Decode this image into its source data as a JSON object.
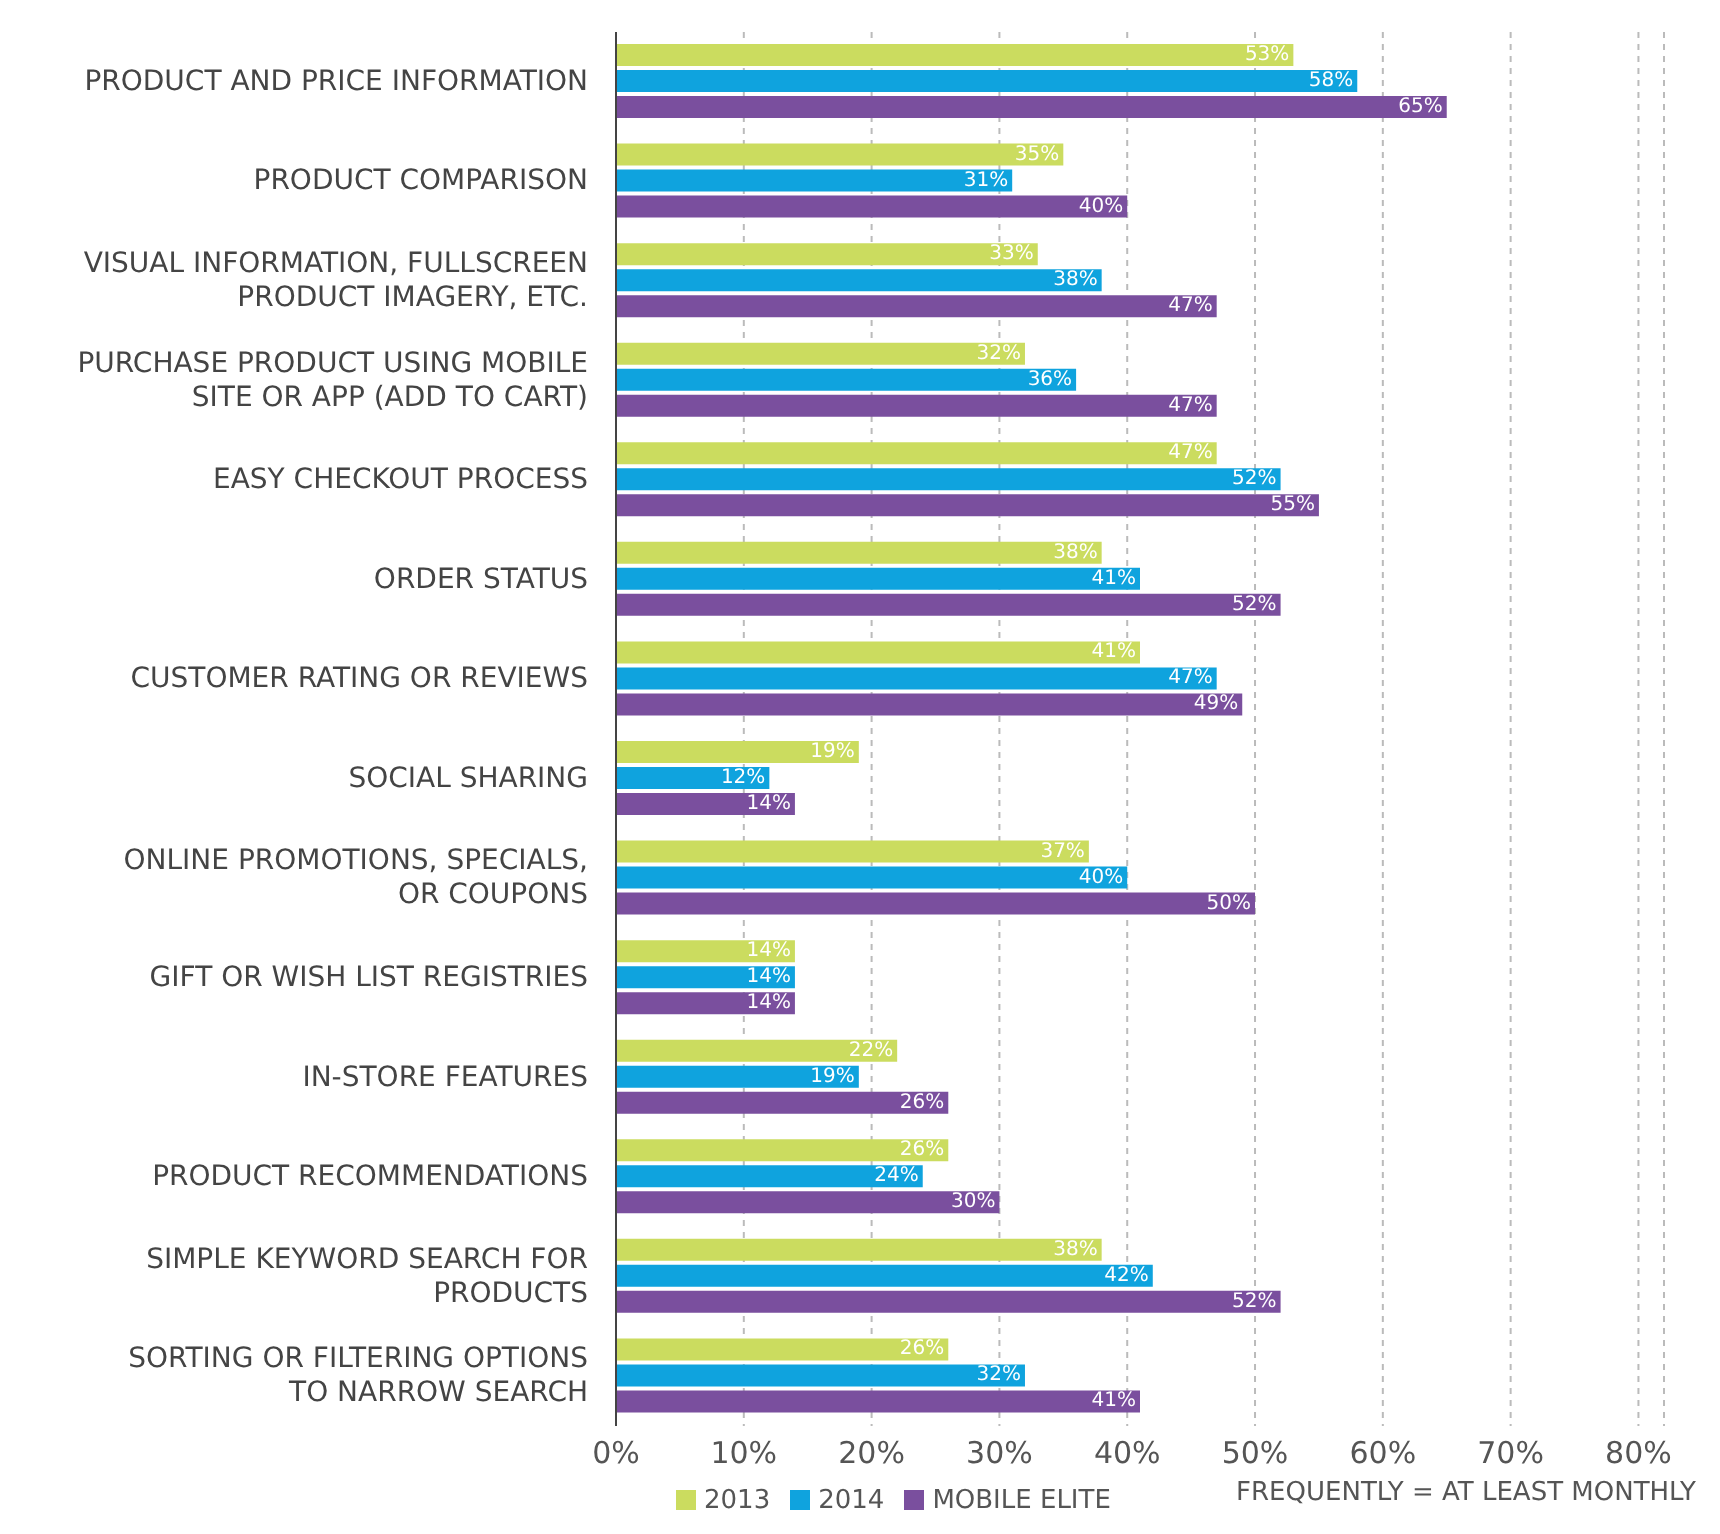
{
  "chart_data": {
    "type": "bar",
    "orientation": "horizontal",
    "categories": [
      "PRODUCT AND PRICE INFORMATION",
      "PRODUCT COMPARISON",
      "VISUAL INFORMATION, FULLSCREEN PRODUCT IMAGERY, ETC.",
      "PURCHASE PRODUCT USING MOBILE SITE OR APP (ADD TO CART)",
      "EASY CHECKOUT PROCESS",
      "ORDER STATUS",
      "CUSTOMER RATING OR REVIEWS",
      "SOCIAL SHARING",
      "ONLINE PROMOTIONS, SPECIALS, OR COUPONS",
      "GIFT OR WISH LIST REGISTRIES",
      "IN-STORE FEATURES",
      "PRODUCT RECOMMENDATIONS",
      "SIMPLE KEYWORD SEARCH FOR PRODUCTS",
      "SORTING OR FILTERING OPTIONS TO NARROW SEARCH"
    ],
    "series": [
      {
        "name": "2013",
        "color": "#cbdc5f",
        "values": [
          53,
          35,
          33,
          32,
          47,
          38,
          41,
          19,
          37,
          14,
          22,
          26,
          38,
          26
        ],
        "value_labels": [
          "53%",
          "35%",
          "33%",
          "32%",
          "47%",
          "38%",
          "41%",
          "19%",
          "37%",
          "14%",
          "22%",
          "26%",
          "38%",
          "26%"
        ]
      },
      {
        "name": "2014",
        "color": "#0fa3de",
        "values": [
          58,
          31,
          38,
          36,
          52,
          41,
          47,
          12,
          40,
          14,
          19,
          24,
          42,
          32
        ],
        "value_labels": [
          "58%",
          "31%",
          "38%",
          "36%",
          "52%",
          "41%",
          "47%",
          "12%",
          "40%",
          "14%",
          "19%",
          "24%",
          "42%",
          "32%"
        ]
      },
      {
        "name": "MOBILE ELITE",
        "color": "#7a4f9e",
        "values": [
          65,
          40,
          47,
          47,
          55,
          52,
          49,
          14,
          50,
          14,
          26,
          30,
          52,
          41
        ],
        "value_labels": [
          "65%",
          "40%",
          "47%",
          "47%",
          "55%",
          "52%",
          "49%",
          "14%",
          "50%",
          "14%",
          "26%",
          "30%",
          "52%",
          "41%"
        ]
      }
    ],
    "xlim": [
      0,
      82
    ],
    "xticks": [
      {
        "value": 0,
        "label": "0%"
      },
      {
        "value": 10,
        "label": "10%"
      },
      {
        "value": 20,
        "label": "20%"
      },
      {
        "value": 30,
        "label": "30%"
      },
      {
        "value": 40,
        "label": "40%"
      },
      {
        "value": 50,
        "label": "50%"
      },
      {
        "value": 60,
        "label": "60%"
      },
      {
        "value": 70,
        "label": "70%"
      },
      {
        "value": 80,
        "label": "80%"
      }
    ],
    "grid": "x",
    "legend": "bottom",
    "annotations": [
      "FREQUENTLY = AT LEAST MONTHLY"
    ]
  }
}
